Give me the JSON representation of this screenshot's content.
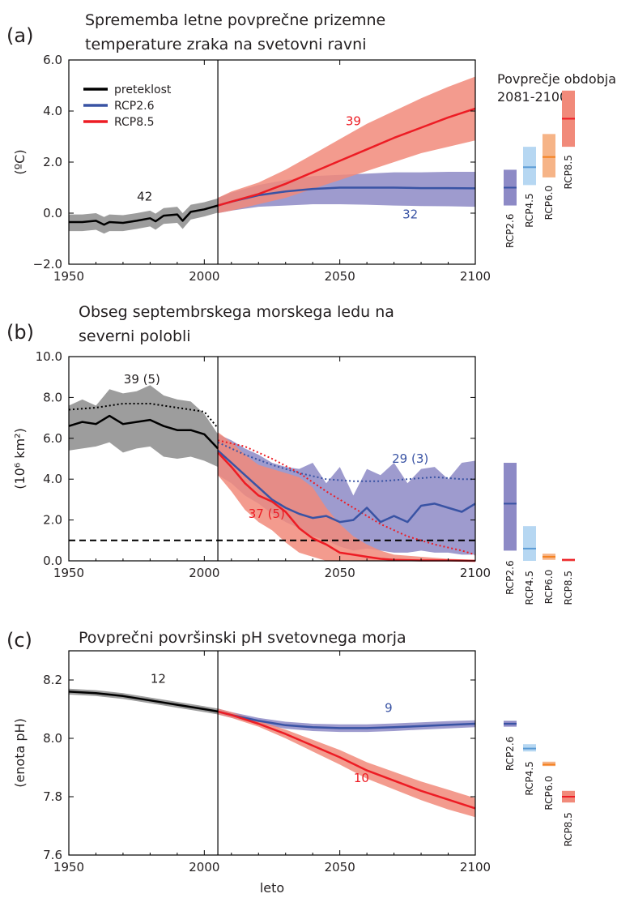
{
  "xlabel": "leto",
  "chart_data": [
    {
      "id": "a",
      "type": "line",
      "panel_label": "(a)",
      "title": [
        "Sprememba letne povprečne prizemne",
        "temperature zraka na svetovni ravni"
      ],
      "ylabel": "(ºC)",
      "xlim": [
        1950,
        2100
      ],
      "ylim": [
        -2,
        6
      ],
      "x_ticks": [
        1950,
        2000,
        2050,
        2100
      ],
      "y_ticks": [
        -2,
        0,
        2,
        4,
        6
      ],
      "y_tick_labels": [
        "−2.0",
        "0.0",
        "2.0",
        "4.0",
        "6.0"
      ],
      "grid": false,
      "divider_year": 2005,
      "legend": {
        "placement": "top-left",
        "entries": [
          {
            "label": "preteklost",
            "color": "#000000"
          },
          {
            "label": "RCP2.6",
            "color": "#3953a4"
          },
          {
            "label": "RCP8.5",
            "color": "#ed1c24"
          }
        ]
      },
      "series": [
        {
          "name": "preteklost",
          "color": "#000000",
          "band_color": "#8c8c8c",
          "x": [
            1950,
            1955,
            1960,
            1963,
            1965,
            1970,
            1975,
            1980,
            1982,
            1985,
            1990,
            1992,
            1995,
            2000,
            2005
          ],
          "y": [
            -0.35,
            -0.35,
            -0.3,
            -0.45,
            -0.35,
            -0.38,
            -0.3,
            -0.2,
            -0.32,
            -0.1,
            -0.05,
            -0.3,
            0.05,
            0.15,
            0.3
          ],
          "low": [
            -0.7,
            -0.7,
            -0.65,
            -0.8,
            -0.7,
            -0.7,
            -0.62,
            -0.52,
            -0.65,
            -0.42,
            -0.38,
            -0.62,
            -0.25,
            -0.13,
            0.02
          ],
          "high": [
            -0.05,
            -0.05,
            0.0,
            -0.15,
            -0.05,
            -0.08,
            0.0,
            0.1,
            -0.02,
            0.2,
            0.25,
            0.0,
            0.33,
            0.43,
            0.58
          ]
        },
        {
          "name": "RCP2.6",
          "color": "#3953a4",
          "band_color": "#8d8ac6",
          "x": [
            2005,
            2010,
            2020,
            2030,
            2040,
            2050,
            2060,
            2070,
            2080,
            2090,
            2100
          ],
          "y": [
            0.3,
            0.45,
            0.7,
            0.85,
            0.95,
            1.0,
            1.0,
            1.0,
            0.98,
            0.98,
            0.97
          ],
          "low": [
            0.0,
            0.1,
            0.25,
            0.3,
            0.35,
            0.35,
            0.33,
            0.3,
            0.28,
            0.27,
            0.25
          ],
          "high": [
            0.6,
            0.8,
            1.1,
            1.3,
            1.45,
            1.5,
            1.55,
            1.6,
            1.6,
            1.62,
            1.62
          ]
        },
        {
          "name": "RCP8.5",
          "color": "#ed1c24",
          "band_color": "#f18a7a",
          "x": [
            2005,
            2010,
            2020,
            2030,
            2040,
            2050,
            2060,
            2070,
            2080,
            2090,
            2100
          ],
          "y": [
            0.3,
            0.45,
            0.75,
            1.15,
            1.6,
            2.05,
            2.5,
            2.95,
            3.35,
            3.75,
            4.1
          ],
          "low": [
            0.0,
            0.1,
            0.35,
            0.6,
            0.95,
            1.3,
            1.65,
            2.0,
            2.35,
            2.6,
            2.85
          ],
          "high": [
            0.6,
            0.85,
            1.2,
            1.7,
            2.3,
            2.9,
            3.5,
            4.0,
            4.5,
            4.95,
            5.35
          ]
        }
      ],
      "annotations": [
        {
          "text": "42",
          "x": 1978,
          "y": 0.5,
          "color": "#231f20"
        },
        {
          "text": "39",
          "x": 2055,
          "y": 3.45,
          "color": "#ed1c24"
        },
        {
          "text": "32",
          "x": 2076,
          "y": -0.2,
          "color": "#3953a4"
        }
      ],
      "side_bars": {
        "title": [
          "Povprečje obdobja",
          "2081-2100"
        ],
        "items": [
          {
            "label": "RCP2.6",
            "low": 0.3,
            "mid": 1.0,
            "high": 1.7,
            "color": "#3953a4",
            "fill": "#8d8ac6"
          },
          {
            "label": "RCP4.5",
            "low": 1.1,
            "mid": 1.8,
            "high": 2.6,
            "color": "#5b9bd5",
            "fill": "#b6d7f2"
          },
          {
            "label": "RCP6.0",
            "low": 1.4,
            "mid": 2.2,
            "high": 3.1,
            "color": "#f58220",
            "fill": "#f6b487"
          },
          {
            "label": "RCP8.5",
            "low": 2.6,
            "mid": 3.7,
            "high": 4.8,
            "color": "#ed1c24",
            "fill": "#f18a7a"
          }
        ]
      }
    },
    {
      "id": "b",
      "type": "line",
      "panel_label": "(b)",
      "title": [
        "Obseg septembrskega morskega ledu na",
        "severni polobli"
      ],
      "ylabel": "(10⁶ km²)",
      "xlim": [
        1950,
        2100
      ],
      "ylim": [
        0,
        10
      ],
      "x_ticks": [
        1950,
        2000,
        2050,
        2100
      ],
      "y_ticks": [
        0,
        2,
        4,
        6,
        8,
        10
      ],
      "y_tick_labels": [
        "0.0",
        "2.0",
        "4.0",
        "6.0",
        "8.0",
        "10.0"
      ],
      "grid": false,
      "divider_year": 2005,
      "threshold": 1.0,
      "series": [
        {
          "name": "preteklost",
          "color": "#000000",
          "band_color": "#8c8c8c",
          "x": [
            1950,
            1955,
            1960,
            1965,
            1970,
            1975,
            1980,
            1985,
            1990,
            1995,
            2000,
            2005
          ],
          "y": [
            6.6,
            6.8,
            6.7,
            7.1,
            6.7,
            6.8,
            6.9,
            6.6,
            6.4,
            6.4,
            6.2,
            5.5
          ],
          "low": [
            5.4,
            5.5,
            5.6,
            5.8,
            5.3,
            5.5,
            5.6,
            5.1,
            5.0,
            5.1,
            4.9,
            4.6
          ],
          "high": [
            7.6,
            7.9,
            7.6,
            8.4,
            8.2,
            8.3,
            8.6,
            8.1,
            7.9,
            7.8,
            7.2,
            6.2
          ],
          "dotted_x": [
            1950,
            1960,
            1970,
            1980,
            1990,
            2000,
            2005
          ],
          "dotted_y": [
            7.4,
            7.5,
            7.7,
            7.7,
            7.5,
            7.3,
            6.5
          ]
        },
        {
          "name": "RCP2.6",
          "color": "#3953a4",
          "band_color": "#8d8ac6",
          "x": [
            2005,
            2010,
            2015,
            2020,
            2025,
            2030,
            2035,
            2040,
            2045,
            2050,
            2055,
            2060,
            2065,
            2070,
            2075,
            2080,
            2085,
            2090,
            2095,
            2100
          ],
          "y": [
            5.4,
            4.8,
            4.2,
            3.6,
            3.0,
            2.6,
            2.3,
            2.1,
            2.2,
            1.9,
            2.0,
            2.6,
            1.9,
            2.2,
            1.9,
            2.7,
            2.8,
            2.6,
            2.4,
            2.8
          ],
          "low": [
            4.2,
            3.8,
            3.2,
            2.8,
            2.3,
            1.9,
            1.6,
            1.2,
            1.0,
            0.7,
            0.5,
            0.6,
            0.5,
            0.4,
            0.4,
            0.5,
            0.4,
            0.4,
            0.3,
            0.3
          ],
          "high": [
            6.2,
            5.9,
            5.5,
            5.2,
            4.8,
            4.6,
            4.5,
            4.8,
            3.8,
            4.6,
            3.2,
            4.5,
            4.2,
            4.8,
            3.8,
            4.5,
            4.6,
            4.0,
            4.8,
            4.9
          ],
          "dotted_x": [
            2005,
            2015,
            2025,
            2035,
            2045,
            2055,
            2065,
            2075,
            2085,
            2095,
            2100
          ],
          "dotted_y": [
            5.8,
            5.2,
            4.7,
            4.3,
            4.0,
            3.9,
            3.9,
            4.0,
            4.1,
            4.0,
            4.0
          ]
        },
        {
          "name": "RCP8.5",
          "color": "#ed1c24",
          "band_color": "#f18a7a",
          "x": [
            2005,
            2010,
            2015,
            2020,
            2025,
            2030,
            2035,
            2040,
            2045,
            2050,
            2055,
            2060,
            2065,
            2070,
            2080,
            2090,
            2100
          ],
          "y": [
            5.3,
            4.6,
            3.8,
            3.2,
            2.9,
            2.4,
            1.6,
            1.1,
            0.8,
            0.4,
            0.3,
            0.2,
            0.1,
            0.05,
            0.02,
            0.02,
            0.0
          ],
          "low": [
            4.2,
            3.4,
            2.5,
            1.9,
            1.5,
            0.9,
            0.4,
            0.2,
            0.0,
            0.0,
            0.0,
            0.0,
            0.0,
            0.0,
            0.0,
            0.0,
            0.0
          ],
          "high": [
            6.3,
            5.8,
            5.2,
            4.7,
            4.5,
            4.3,
            4.1,
            3.6,
            2.6,
            1.8,
            1.2,
            0.8,
            0.5,
            0.3,
            0.2,
            0.1,
            0.05
          ],
          "dotted_x": [
            2005,
            2015,
            2025,
            2035,
            2045,
            2055,
            2065,
            2075,
            2085,
            2095,
            2100
          ],
          "dotted_y": [
            5.9,
            5.6,
            5.0,
            4.3,
            3.4,
            2.6,
            1.8,
            1.2,
            0.8,
            0.5,
            0.3
          ]
        }
      ],
      "annotations": [
        {
          "text": "39 (5)",
          "x": 1977,
          "y": 8.7,
          "color": "#231f20"
        },
        {
          "text": "29 (3)",
          "x": 2076,
          "y": 4.8,
          "color": "#3953a4"
        },
        {
          "text": "37 (5)",
          "x": 2023,
          "y": 2.1,
          "color": "#ed1c24"
        }
      ],
      "side_bars": {
        "items": [
          {
            "label": "RCP2.6",
            "low": 0.5,
            "mid": 2.8,
            "high": 4.8,
            "color": "#3953a4",
            "fill": "#8d8ac6"
          },
          {
            "label": "RCP4.5",
            "low": 0.0,
            "mid": 0.6,
            "high": 1.7,
            "color": "#5b9bd5",
            "fill": "#b6d7f2"
          },
          {
            "label": "RCP6.0",
            "low": 0.05,
            "mid": 0.2,
            "high": 0.35,
            "color": "#f58220",
            "fill": "#f6b487"
          },
          {
            "label": "RCP8.5",
            "low": 0.0,
            "mid": 0.05,
            "high": 0.1,
            "color": "#ed1c24",
            "fill": "#f18a7a"
          }
        ]
      }
    },
    {
      "id": "c",
      "type": "line",
      "panel_label": "(c)",
      "title": [
        "Povprečni površinski pH svetovnega morja"
      ],
      "ylabel": "(enota pH)",
      "xlim": [
        1950,
        2100
      ],
      "ylim": [
        7.6,
        8.3
      ],
      "x_ticks": [
        1950,
        2000,
        2050,
        2100
      ],
      "y_ticks": [
        7.6,
        7.8,
        8.0,
        8.2
      ],
      "y_tick_labels": [
        "7.6",
        "7.8",
        "8.0",
        "8.2"
      ],
      "grid": false,
      "divider_year": 2005,
      "series": [
        {
          "name": "preteklost",
          "color": "#000000",
          "band_color": "#8c8c8c",
          "x": [
            1950,
            1960,
            1970,
            1980,
            1990,
            2000,
            2005
          ],
          "y": [
            8.16,
            8.155,
            8.145,
            8.13,
            8.115,
            8.1,
            8.092
          ],
          "low": [
            8.15,
            8.145,
            8.135,
            8.12,
            8.105,
            8.09,
            8.082
          ],
          "high": [
            8.17,
            8.165,
            8.155,
            8.14,
            8.125,
            8.11,
            8.102
          ]
        },
        {
          "name": "RCP2.6",
          "color": "#3953a4",
          "band_color": "#8d8ac6",
          "x": [
            2005,
            2010,
            2020,
            2030,
            2040,
            2050,
            2060,
            2070,
            2080,
            2090,
            2100
          ],
          "y": [
            8.092,
            8.08,
            8.06,
            8.045,
            8.038,
            8.035,
            8.035,
            8.038,
            8.042,
            8.046,
            8.05
          ],
          "low": [
            8.082,
            8.07,
            8.05,
            8.033,
            8.025,
            8.022,
            8.022,
            8.025,
            8.03,
            8.034,
            8.038
          ],
          "high": [
            8.102,
            8.09,
            8.07,
            8.057,
            8.05,
            8.048,
            8.048,
            8.051,
            8.055,
            8.059,
            8.062
          ]
        },
        {
          "name": "RCP8.5",
          "color": "#ed1c24",
          "band_color": "#f18a7a",
          "x": [
            2005,
            2010,
            2020,
            2030,
            2040,
            2050,
            2060,
            2070,
            2080,
            2090,
            2100
          ],
          "y": [
            8.092,
            8.08,
            8.05,
            8.015,
            7.975,
            7.935,
            7.89,
            7.855,
            7.82,
            7.79,
            7.76
          ],
          "low": [
            8.082,
            8.07,
            8.04,
            8.0,
            7.955,
            7.91,
            7.862,
            7.825,
            7.788,
            7.756,
            7.73
          ],
          "high": [
            8.102,
            8.09,
            8.06,
            8.03,
            7.995,
            7.96,
            7.918,
            7.885,
            7.852,
            7.824,
            7.795
          ]
        }
      ],
      "annotations": [
        {
          "text": "12",
          "x": 1983,
          "y": 8.19,
          "color": "#231f20"
        },
        {
          "text": "9",
          "x": 2068,
          "y": 8.09,
          "color": "#3953a4"
        },
        {
          "text": "10",
          "x": 2058,
          "y": 7.85,
          "color": "#ed1c24"
        }
      ],
      "side_bars": {
        "items": [
          {
            "label": "RCP2.6",
            "low": 8.04,
            "mid": 8.05,
            "high": 8.06,
            "color": "#3953a4",
            "fill": "#8d8ac6"
          },
          {
            "label": "RCP4.5",
            "low": 7.955,
            "mid": 7.965,
            "high": 7.98,
            "color": "#5b9bd5",
            "fill": "#b6d7f2"
          },
          {
            "label": "RCP6.0",
            "low": 7.905,
            "mid": 7.91,
            "high": 7.92,
            "color": "#f58220",
            "fill": "#f6b487"
          },
          {
            "label": "RCP8.5",
            "low": 7.78,
            "mid": 7.8,
            "high": 7.82,
            "color": "#ed1c24",
            "fill": "#f18a7a"
          }
        ]
      }
    }
  ]
}
